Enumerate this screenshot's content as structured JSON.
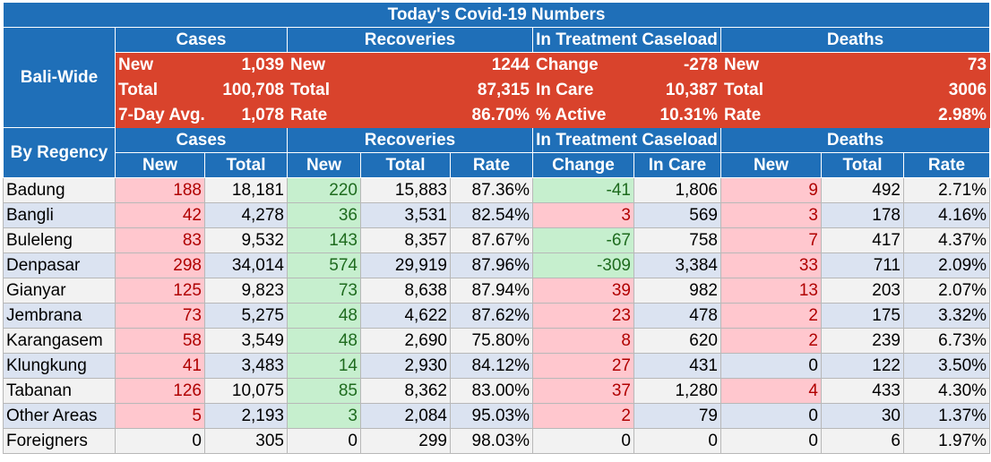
{
  "title": "Today's Covid-19 Numbers",
  "groups": {
    "cases": "Cases",
    "recoveries": "Recoveries",
    "treatment": "In Treatment Caseload",
    "deaths": "Deaths"
  },
  "bali_wide": {
    "label": "Bali-Wide",
    "rows": [
      {
        "c_label": "New",
        "c_value": "1,039",
        "r_label": "New",
        "r_value": "1244",
        "t_label": "Change",
        "t_value": "-278",
        "d_label": "New",
        "d_value": "73"
      },
      {
        "c_label": "Total",
        "c_value": "100,708",
        "r_label": "Total",
        "r_value": "87,315",
        "t_label": "In Care",
        "t_value": "10,387",
        "d_label": "Total",
        "d_value": "3006"
      },
      {
        "c_label": "7-Day Avg.",
        "c_value": "1,078",
        "r_label": "Rate",
        "r_value": "86.70%",
        "t_label": "% Active",
        "t_value": "10.31%",
        "d_label": "Rate",
        "d_value": "2.98%"
      }
    ]
  },
  "by_regency": {
    "label": "By Regency",
    "columns": [
      "New",
      "Total",
      "New",
      "Total",
      "Rate",
      "Change",
      "In Care",
      "New",
      "Total",
      "Rate"
    ],
    "rows": [
      {
        "name": "Badung",
        "c_new": "188",
        "c_total": "18,181",
        "r_new": "220",
        "r_total": "15,883",
        "r_rate": "87.36%",
        "t_change": "-41",
        "t_care": "1,806",
        "d_new": "9",
        "d_total": "492",
        "d_rate": "2.71%"
      },
      {
        "name": "Bangli",
        "c_new": "42",
        "c_total": "4,278",
        "r_new": "36",
        "r_total": "3,531",
        "r_rate": "82.54%",
        "t_change": "3",
        "t_care": "569",
        "d_new": "3",
        "d_total": "178",
        "d_rate": "4.16%"
      },
      {
        "name": "Buleleng",
        "c_new": "83",
        "c_total": "9,532",
        "r_new": "143",
        "r_total": "8,357",
        "r_rate": "87.67%",
        "t_change": "-67",
        "t_care": "758",
        "d_new": "7",
        "d_total": "417",
        "d_rate": "4.37%"
      },
      {
        "name": "Denpasar",
        "c_new": "298",
        "c_total": "34,014",
        "r_new": "574",
        "r_total": "29,919",
        "r_rate": "87.96%",
        "t_change": "-309",
        "t_care": "3,384",
        "d_new": "33",
        "d_total": "711",
        "d_rate": "2.09%"
      },
      {
        "name": "Gianyar",
        "c_new": "125",
        "c_total": "9,823",
        "r_new": "73",
        "r_total": "8,638",
        "r_rate": "87.94%",
        "t_change": "39",
        "t_care": "982",
        "d_new": "13",
        "d_total": "203",
        "d_rate": "2.07%"
      },
      {
        "name": "Jembrana",
        "c_new": "73",
        "c_total": "5,275",
        "r_new": "48",
        "r_total": "4,622",
        "r_rate": "87.62%",
        "t_change": "23",
        "t_care": "478",
        "d_new": "2",
        "d_total": "175",
        "d_rate": "3.32%"
      },
      {
        "name": "Karangasem",
        "c_new": "58",
        "c_total": "3,549",
        "r_new": "48",
        "r_total": "2,690",
        "r_rate": "75.80%",
        "t_change": "8",
        "t_care": "620",
        "d_new": "2",
        "d_total": "239",
        "d_rate": "6.73%"
      },
      {
        "name": "Klungkung",
        "c_new": "41",
        "c_total": "3,483",
        "r_new": "14",
        "r_total": "2,930",
        "r_rate": "84.12%",
        "t_change": "27",
        "t_care": "431",
        "d_new": "0",
        "d_total": "122",
        "d_rate": "3.50%"
      },
      {
        "name": "Tabanan",
        "c_new": "126",
        "c_total": "10,075",
        "r_new": "85",
        "r_total": "8,362",
        "r_rate": "83.00%",
        "t_change": "37",
        "t_care": "1,280",
        "d_new": "4",
        "d_total": "433",
        "d_rate": "4.30%"
      },
      {
        "name": "Other Areas",
        "c_new": "5",
        "c_total": "2,193",
        "r_new": "3",
        "r_total": "2,084",
        "r_rate": "95.03%",
        "t_change": "2",
        "t_care": "79",
        "d_new": "0",
        "d_total": "30",
        "d_rate": "1.37%"
      },
      {
        "name": "Foreigners",
        "c_new": "0",
        "c_total": "305",
        "r_new": "0",
        "r_total": "299",
        "r_rate": "98.03%",
        "t_change": "0",
        "t_care": "0",
        "d_new": "0",
        "d_total": "6",
        "d_rate": "1.97%"
      }
    ]
  },
  "colors": {
    "header_blue": "#1f6fb8",
    "summary_red": "#d9432c",
    "alert_pink": "#ffc7ce",
    "good_green": "#c6efce"
  }
}
